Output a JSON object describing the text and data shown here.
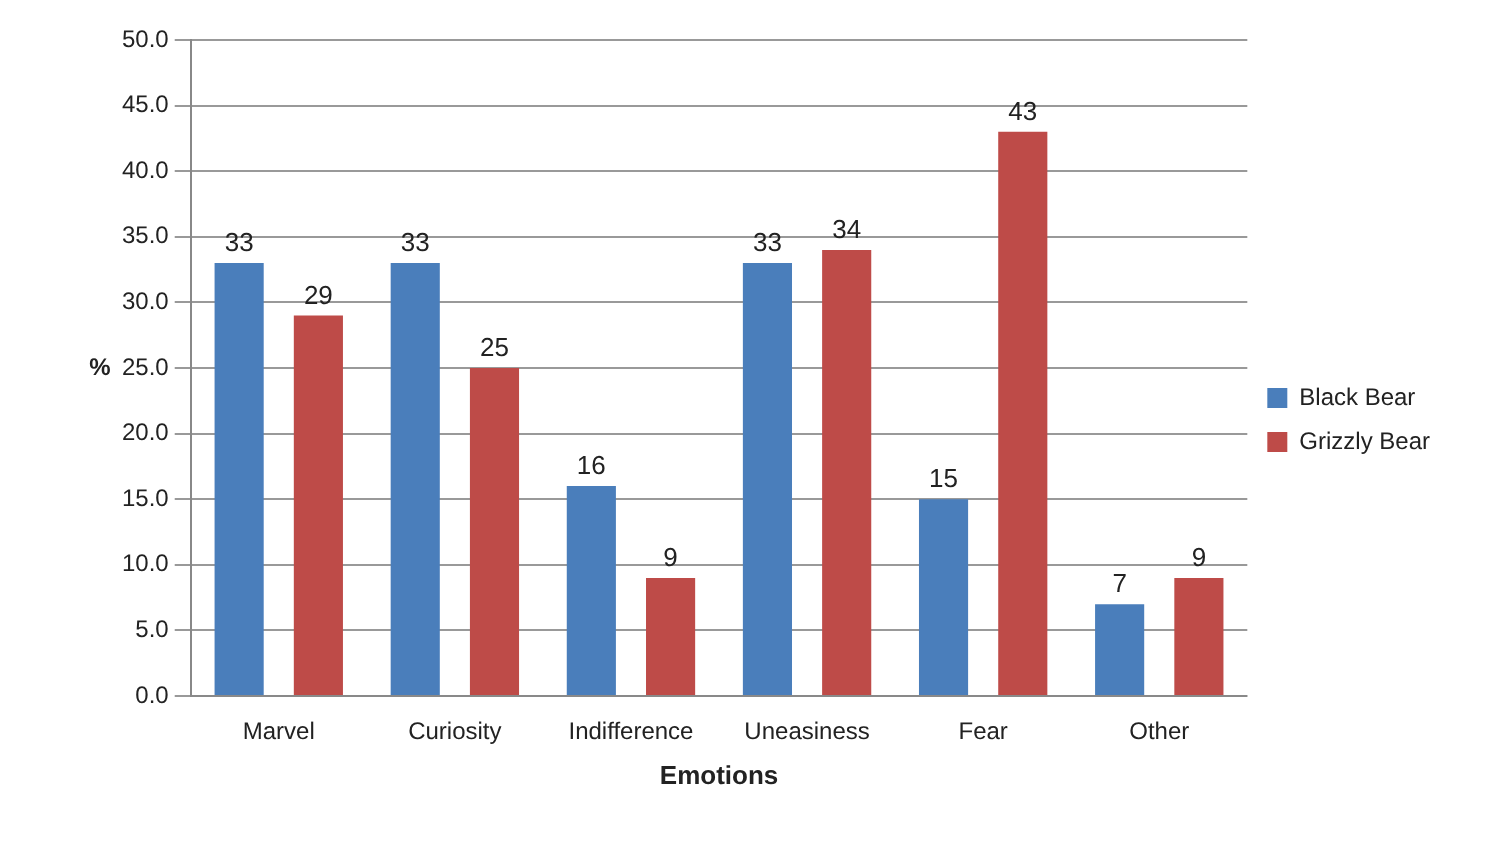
{
  "chart_data": {
    "type": "bar",
    "xlabel": "Emotions",
    "ylabel": "%",
    "categories": [
      "Marvel",
      "Curiosity",
      "Indifference",
      "Uneasiness",
      "Fear",
      "Other"
    ],
    "series": [
      {
        "name": "Black Bear",
        "color": "#4a7ebb",
        "values": [
          33,
          33,
          16,
          33,
          15,
          7
        ]
      },
      {
        "name": "Grizzly Bear",
        "color": "#be4b48",
        "values": [
          29,
          25,
          9,
          34,
          43,
          9
        ]
      }
    ],
    "ylim": [
      0,
      50
    ],
    "yticks": [
      {
        "value": 0,
        "label": "0.0"
      },
      {
        "value": 5,
        "label": "5.0"
      },
      {
        "value": 10,
        "label": "10.0"
      },
      {
        "value": 15,
        "label": "15.0"
      },
      {
        "value": 20,
        "label": "20.0"
      },
      {
        "value": 25,
        "label": "25.0"
      },
      {
        "value": 30,
        "label": "30.0"
      },
      {
        "value": 35,
        "label": "35.0"
      },
      {
        "value": 40,
        "label": "40.0"
      },
      {
        "value": 45,
        "label": "45.0"
      },
      {
        "value": 50,
        "label": "50.0"
      }
    ],
    "grid": "y",
    "legend": "right",
    "data_labels": true
  }
}
